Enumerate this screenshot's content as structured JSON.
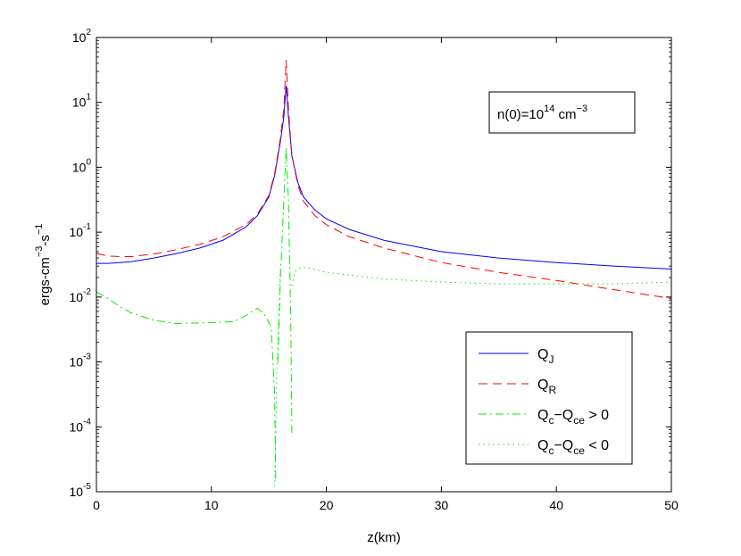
{
  "chart_data": {
    "type": "line",
    "xlabel": "z(km)",
    "ylabel": "ergs-cm⁻³-s⁻¹",
    "ylabel_parts": {
      "a": "ergs-cm",
      "b": "−3",
      "c": "-s",
      "d": "−1"
    },
    "y_scale": "log",
    "xlim": [
      0,
      50
    ],
    "ylim": [
      1e-05,
      100
    ],
    "x_ticks": [
      0,
      10,
      20,
      30,
      40,
      50
    ],
    "y_ticks": [
      1e-05,
      0.0001,
      0.001,
      0.01,
      0.1,
      1,
      10,
      100
    ],
    "y_tick_labels": [
      {
        "base": "10",
        "exp": "-5"
      },
      {
        "base": "10",
        "exp": "-4"
      },
      {
        "base": "10",
        "exp": "-3"
      },
      {
        "base": "10",
        "exp": "-2"
      },
      {
        "base": "10",
        "exp": "-1"
      },
      {
        "base": "10",
        "exp": "0"
      },
      {
        "base": "10",
        "exp": "1"
      },
      {
        "base": "10",
        "exp": "2"
      }
    ],
    "annotation": {
      "pre": "n(0)=10",
      "exp": "14",
      "mid": " cm",
      "exp2": "−3"
    },
    "legend_position": "lower-right",
    "series": [
      {
        "legend": {
          "base": "Q",
          "sub": "J",
          "rest": ""
        },
        "color": "#0000ff",
        "style": "solid",
        "x": [
          0,
          1,
          3,
          5,
          7,
          9,
          11,
          13,
          14,
          15,
          15.5,
          16,
          16.3,
          16.5,
          16.7,
          17,
          17.5,
          18,
          19,
          20,
          22,
          25,
          30,
          35,
          40,
          45,
          50
        ],
        "y": [
          0.033,
          0.033,
          0.035,
          0.04,
          0.047,
          0.057,
          0.075,
          0.12,
          0.18,
          0.35,
          0.75,
          2.5,
          6,
          18,
          6,
          1.5,
          0.6,
          0.35,
          0.22,
          0.16,
          0.11,
          0.075,
          0.05,
          0.04,
          0.034,
          0.03,
          0.027
        ]
      },
      {
        "legend": {
          "base": "Q",
          "sub": "R",
          "rest": ""
        },
        "color": "#ff0000",
        "style": "dashed",
        "x": [
          0,
          1,
          2,
          3,
          5,
          7,
          9,
          11,
          13,
          14,
          15,
          15.5,
          16,
          16.3,
          16.5,
          16.7,
          17,
          17.5,
          18,
          19,
          20,
          22,
          25,
          30,
          35,
          40,
          45,
          50
        ],
        "y": [
          0.047,
          0.043,
          0.042,
          0.042,
          0.046,
          0.054,
          0.065,
          0.085,
          0.13,
          0.19,
          0.37,
          0.8,
          2.8,
          8,
          45,
          8,
          1.5,
          0.55,
          0.3,
          0.18,
          0.13,
          0.085,
          0.057,
          0.034,
          0.024,
          0.018,
          0.013,
          0.0095
        ]
      },
      {
        "legend": {
          "base": "Q",
          "sub": "c",
          "rest": "−Q",
          "sub2": "ce",
          "rest2": " > 0"
        },
        "color": "#00ee00",
        "style": "dashdot",
        "segments": [
          {
            "x": [
              0,
              1,
              2,
              3,
              5,
              7,
              9,
              11,
              12,
              13,
              14,
              14.6,
              15.2,
              15.5,
              15.6
            ],
            "y": [
              0.012,
              0.0095,
              0.0072,
              0.0057,
              0.0044,
              0.0039,
              0.004,
              0.0041,
              0.0042,
              0.0052,
              0.0067,
              0.0055,
              0.0035,
              0.0003,
              1.5e-05
            ]
          },
          {
            "x": [
              15.8,
              16.0,
              16.3,
              16.5,
              16.7,
              16.9,
              17.0
            ],
            "y": [
              0.001,
              0.02,
              0.3,
              2,
              0.3,
              0.005,
              7e-05
            ]
          }
        ]
      },
      {
        "legend": {
          "base": "Q",
          "sub": "c",
          "rest": "−Q",
          "sub2": "ce",
          "rest2": " < 0"
        },
        "color": "#00ee00",
        "style": "dotted",
        "segments": [
          {
            "x": [
              15.5,
              15.7,
              15.9,
              16.0
            ],
            "y": [
              1.2e-05,
              0.0008,
              0.008,
              0.03
            ]
          },
          {
            "x": [
              17.0,
              17.3,
              17.8,
              18.5,
              20,
              25,
              30,
              35,
              40,
              45,
              50
            ],
            "y": [
              0.015,
              0.025,
              0.029,
              0.028,
              0.024,
              0.019,
              0.017,
              0.016,
              0.016,
              0.016,
              0.017
            ]
          }
        ]
      }
    ]
  }
}
